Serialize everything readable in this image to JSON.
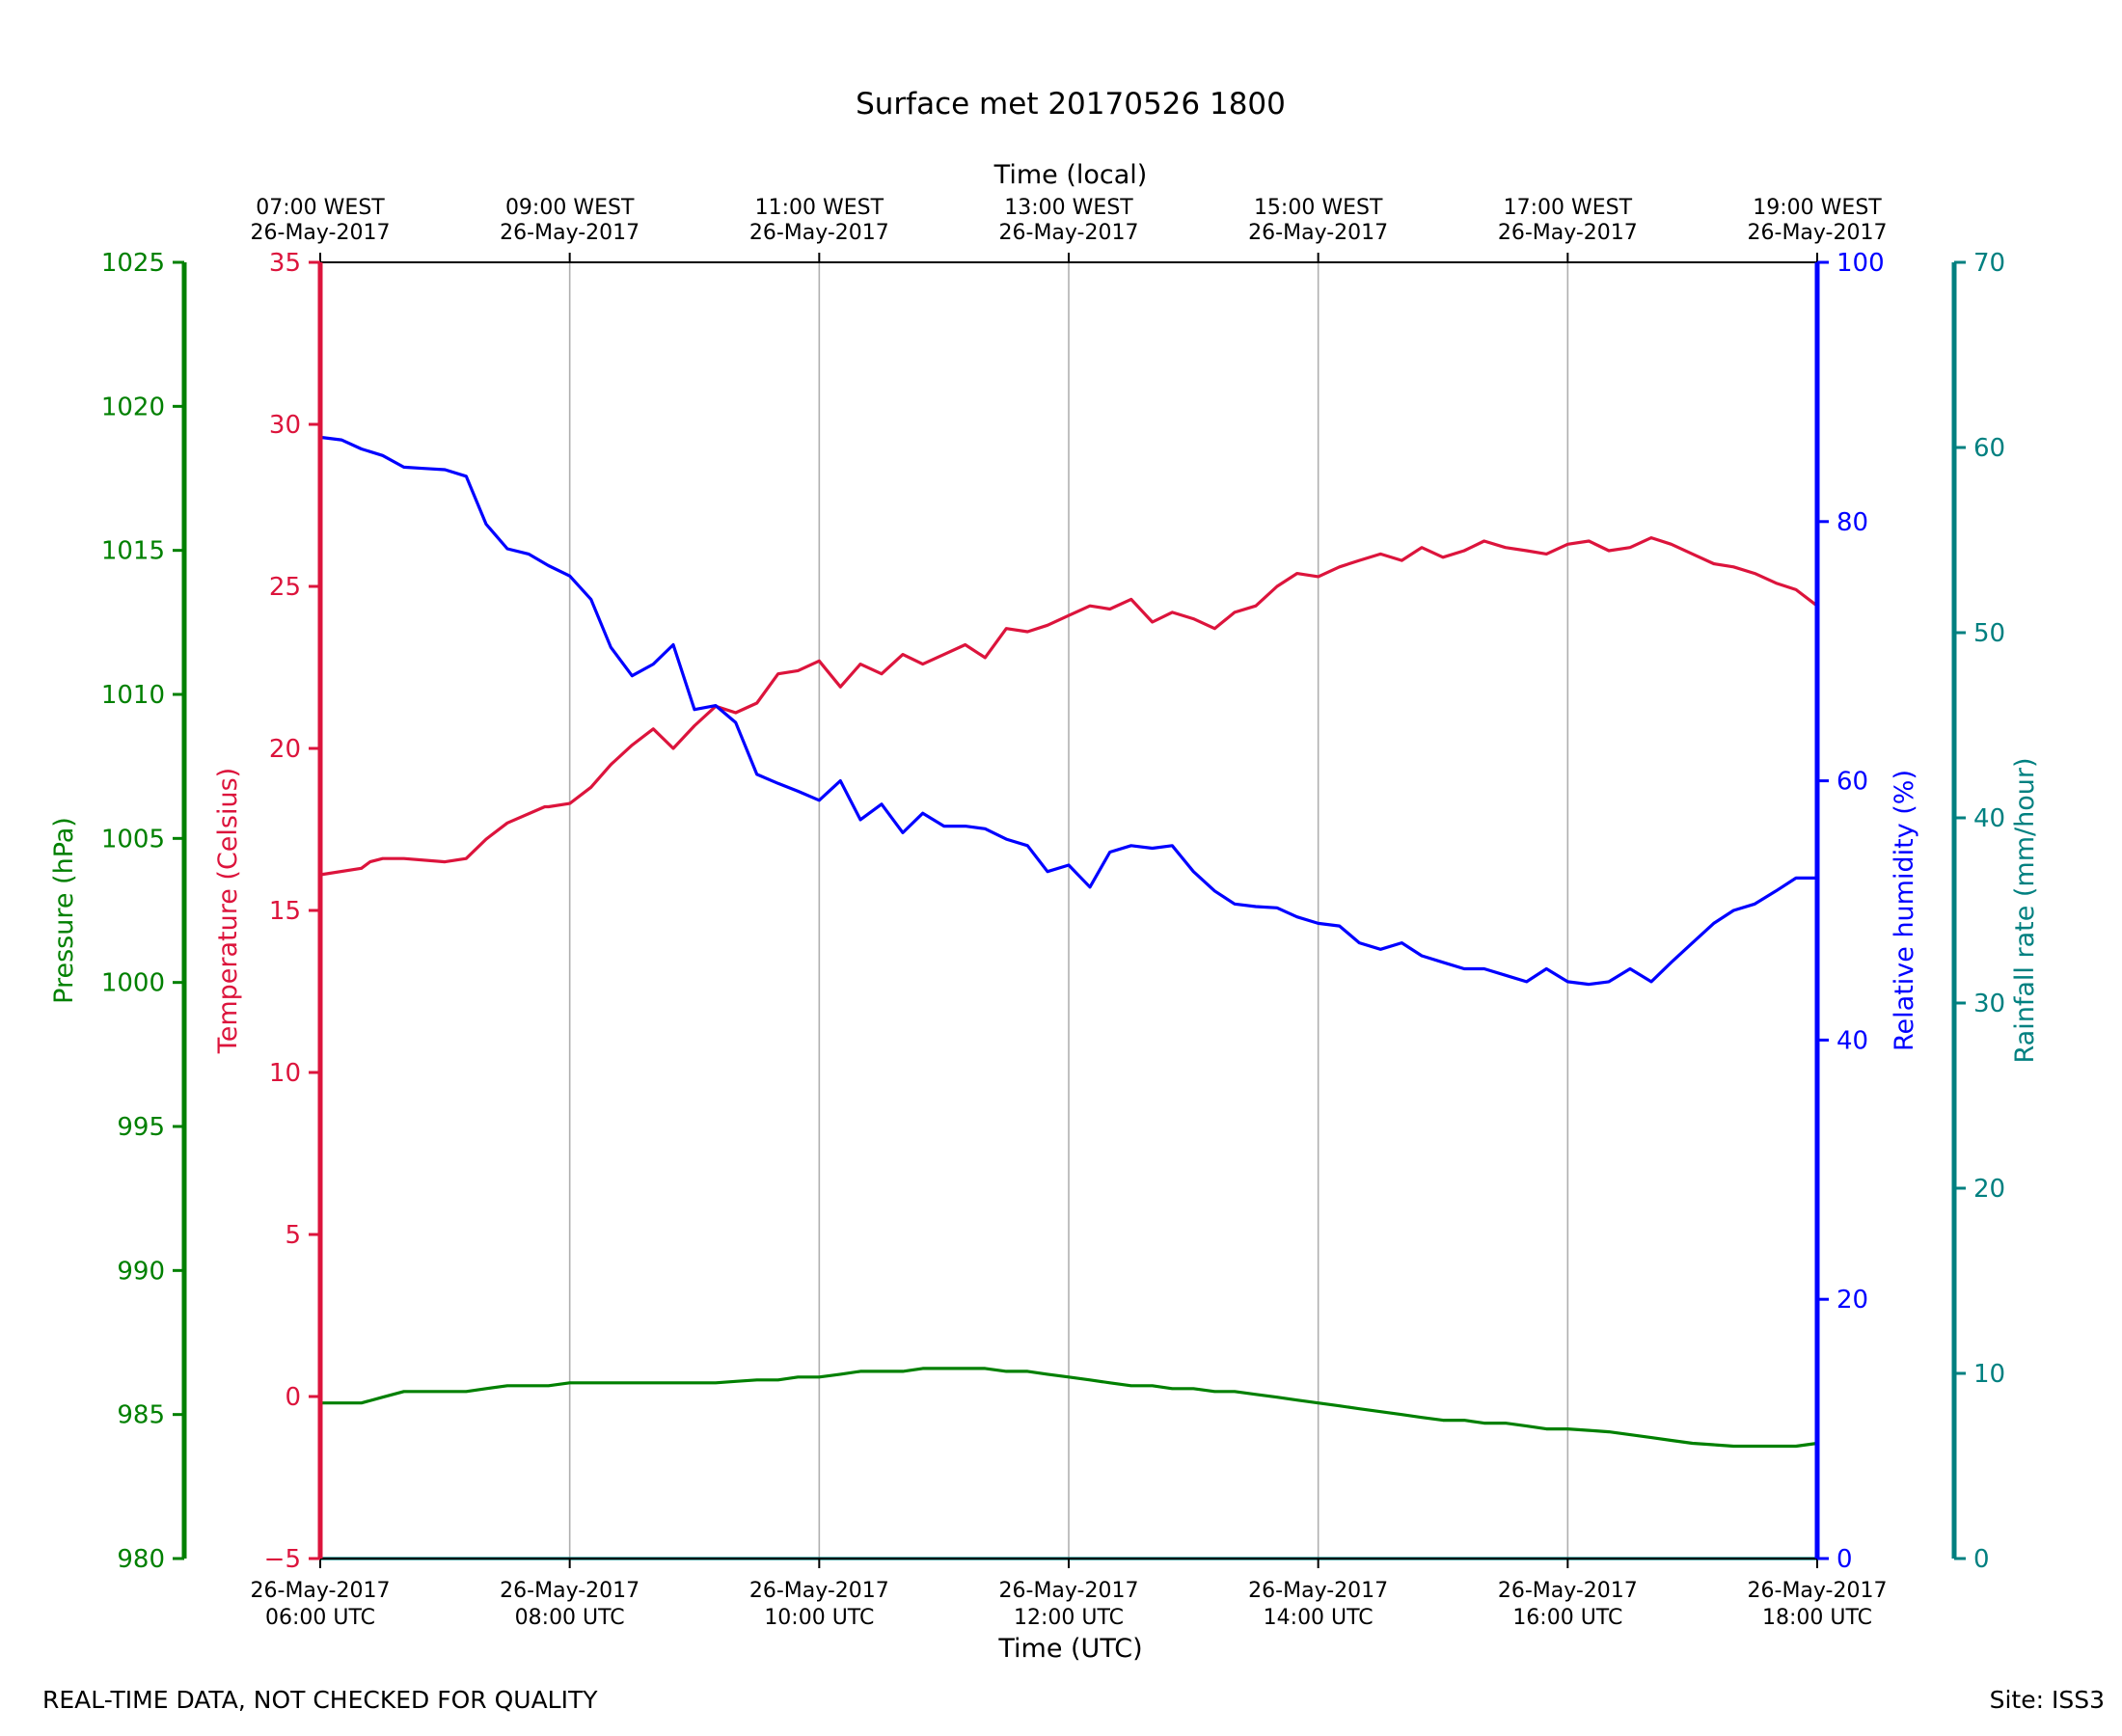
{
  "chart_data": {
    "type": "line",
    "title": "Surface met 20170526 1800",
    "xlabel": "Time (UTC)",
    "top_xlabel": "Time (local)",
    "x_unit": "hours UTC",
    "xlim": [
      6,
      18
    ],
    "x_ticks": [
      {
        "x": 6,
        "utc_line1": "26-May-2017",
        "utc_line2": "06:00 UTC",
        "local_line1": "07:00 WEST",
        "local_line2": "26-May-2017"
      },
      {
        "x": 8,
        "utc_line1": "26-May-2017",
        "utc_line2": "08:00 UTC",
        "local_line1": "09:00 WEST",
        "local_line2": "26-May-2017"
      },
      {
        "x": 10,
        "utc_line1": "26-May-2017",
        "utc_line2": "10:00 UTC",
        "local_line1": "11:00 WEST",
        "local_line2": "26-May-2017"
      },
      {
        "x": 12,
        "utc_line1": "26-May-2017",
        "utc_line2": "12:00 UTC",
        "local_line1": "13:00 WEST",
        "local_line2": "26-May-2017"
      },
      {
        "x": 14,
        "utc_line1": "26-May-2017",
        "utc_line2": "14:00 UTC",
        "local_line1": "15:00 WEST",
        "local_line2": "26-May-2017"
      },
      {
        "x": 16,
        "utc_line1": "26-May-2017",
        "utc_line2": "16:00 UTC",
        "local_line1": "17:00 WEST",
        "local_line2": "26-May-2017"
      },
      {
        "x": 18,
        "utc_line1": "26-May-2017",
        "utc_line2": "18:00 UTC",
        "local_line1": "19:00 WEST",
        "local_line2": "26-May-2017"
      }
    ],
    "grid": "vertical",
    "axes": {
      "pressure": {
        "label": "Pressure (hPa)",
        "color": "#008000",
        "ylim": [
          980,
          1025
        ],
        "ticks": [
          980,
          985,
          990,
          995,
          1000,
          1005,
          1010,
          1015,
          1020,
          1025
        ]
      },
      "temperature": {
        "label": "Temperature (Celsius)",
        "color": "#dc143c",
        "ylim": [
          -5,
          35
        ],
        "ticks": [
          -5,
          0,
          5,
          10,
          15,
          20,
          25,
          30,
          35
        ]
      },
      "humidity": {
        "label": "Relative humidity (%)",
        "color": "#0000ff",
        "ylim": [
          0,
          100
        ],
        "ticks": [
          0,
          20,
          40,
          60,
          80,
          100
        ]
      },
      "rainfall": {
        "label": "Rainfall rate (mm/hour)",
        "color": "#008080",
        "ylim": [
          0,
          70
        ],
        "ticks": [
          0,
          10,
          20,
          30,
          40,
          50,
          60,
          70
        ]
      }
    },
    "series": [
      {
        "name": "Temperature",
        "axis": "temperature",
        "color": "#dc143c",
        "x": [
          6.0,
          6.33,
          6.4,
          6.5,
          6.67,
          7.0,
          7.17,
          7.33,
          7.5,
          7.8,
          7.83,
          8.0,
          8.17,
          8.33,
          8.5,
          8.67,
          8.83,
          9.0,
          9.17,
          9.33,
          9.5,
          9.67,
          9.83,
          10.0,
          10.17,
          10.33,
          10.5,
          10.67,
          10.83,
          11.0,
          11.17,
          11.33,
          11.5,
          11.67,
          11.83,
          12.0,
          12.17,
          12.33,
          12.5,
          12.67,
          12.83,
          13.0,
          13.17,
          13.33,
          13.5,
          13.67,
          13.83,
          14.0,
          14.17,
          14.33,
          14.5,
          14.67,
          14.83,
          15.0,
          15.17,
          15.33,
          15.5,
          15.67,
          15.83,
          16.0,
          16.17,
          16.33,
          16.5,
          16.67,
          16.83,
          17.0,
          17.17,
          17.33,
          17.5,
          17.67,
          17.83,
          18.0
        ],
        "y": [
          16.1,
          16.3,
          16.5,
          16.6,
          16.6,
          16.5,
          16.6,
          17.2,
          17.7,
          18.2,
          18.2,
          18.3,
          18.8,
          19.5,
          20.1,
          20.6,
          20.0,
          20.7,
          21.3,
          21.1,
          21.4,
          22.3,
          22.4,
          22.7,
          21.9,
          22.6,
          22.3,
          22.9,
          22.6,
          22.9,
          23.2,
          22.8,
          23.7,
          23.6,
          23.8,
          24.1,
          24.4,
          24.3,
          24.6,
          23.9,
          24.2,
          24.0,
          23.7,
          24.2,
          24.4,
          25.0,
          25.4,
          25.3,
          25.6,
          25.8,
          26.0,
          25.8,
          26.2,
          25.9,
          26.1,
          26.4,
          26.2,
          26.1,
          26.0,
          26.3,
          26.4,
          26.1,
          26.2,
          26.5,
          26.3,
          26.0,
          25.7,
          25.6,
          25.4,
          25.1,
          24.9,
          24.4
        ]
      },
      {
        "name": "Relative humidity",
        "axis": "humidity",
        "color": "#0000ff",
        "x": [
          6.0,
          6.17,
          6.33,
          6.5,
          6.67,
          6.83,
          7.0,
          7.17,
          7.33,
          7.5,
          7.67,
          7.83,
          8.0,
          8.17,
          8.33,
          8.5,
          8.67,
          8.83,
          9.0,
          9.17,
          9.33,
          9.5,
          9.67,
          9.83,
          10.0,
          10.17,
          10.33,
          10.5,
          10.67,
          10.83,
          11.0,
          11.17,
          11.33,
          11.5,
          11.67,
          11.83,
          12.0,
          12.17,
          12.33,
          12.5,
          12.67,
          12.83,
          13.0,
          13.17,
          13.33,
          13.5,
          13.67,
          13.83,
          14.0,
          14.17,
          14.33,
          14.5,
          14.67,
          14.83,
          15.0,
          15.17,
          15.33,
          15.5,
          15.67,
          15.83,
          16.0,
          16.17,
          16.33,
          16.5,
          16.67,
          16.83,
          17.0,
          17.17,
          17.33,
          17.5,
          17.67,
          17.83,
          18.0
        ],
        "y": [
          86.5,
          86.3,
          85.6,
          85.1,
          84.2,
          84.1,
          84.0,
          83.5,
          79.8,
          77.9,
          77.5,
          76.6,
          75.8,
          74.0,
          70.3,
          68.1,
          69.0,
          70.5,
          65.5,
          65.8,
          64.5,
          60.5,
          59.8,
          59.2,
          58.5,
          60.0,
          57.0,
          58.2,
          56.0,
          57.5,
          56.5,
          56.5,
          56.3,
          55.5,
          55.0,
          53.0,
          53.5,
          51.8,
          54.5,
          55.0,
          54.8,
          55.0,
          53.0,
          51.5,
          50.5,
          50.3,
          50.2,
          49.5,
          49.0,
          48.8,
          47.5,
          47.0,
          47.5,
          46.5,
          46.0,
          45.5,
          45.5,
          45.0,
          44.5,
          45.5,
          44.5,
          44.3,
          44.5,
          45.5,
          44.5,
          46.0,
          47.5,
          49.0,
          50.0,
          50.5,
          51.5,
          52.5,
          52.5
        ]
      },
      {
        "name": "Pressure",
        "axis": "pressure",
        "color": "#008000",
        "x": [
          6.0,
          6.33,
          6.5,
          6.67,
          7.0,
          7.17,
          7.33,
          7.5,
          7.67,
          7.83,
          8.0,
          8.17,
          8.33,
          8.5,
          8.67,
          8.83,
          9.0,
          9.17,
          9.33,
          9.5,
          9.67,
          9.83,
          10.0,
          10.17,
          10.33,
          10.5,
          10.67,
          10.83,
          11.0,
          11.17,
          11.33,
          11.5,
          11.67,
          11.83,
          12.0,
          12.17,
          12.33,
          12.5,
          12.67,
          12.83,
          13.0,
          13.17,
          13.33,
          13.5,
          13.67,
          13.83,
          14.0,
          14.17,
          14.33,
          14.5,
          14.67,
          14.83,
          15.0,
          15.17,
          15.33,
          15.5,
          15.67,
          15.83,
          16.0,
          16.17,
          16.33,
          16.5,
          16.67,
          16.83,
          17.0,
          17.17,
          17.33,
          17.5,
          17.67,
          17.83,
          18.0
        ],
        "y": [
          985.4,
          985.4,
          985.6,
          985.8,
          985.8,
          985.8,
          985.9,
          986.0,
          986.0,
          986.0,
          986.1,
          986.1,
          986.1,
          986.1,
          986.1,
          986.1,
          986.1,
          986.1,
          986.15,
          986.2,
          986.2,
          986.3,
          986.3,
          986.4,
          986.5,
          986.5,
          986.5,
          986.6,
          986.6,
          986.6,
          986.6,
          986.5,
          986.5,
          986.4,
          986.3,
          986.2,
          986.1,
          986.0,
          986.0,
          985.9,
          985.9,
          985.8,
          985.8,
          985.7,
          985.6,
          985.5,
          985.4,
          985.3,
          985.2,
          985.1,
          985.0,
          984.9,
          984.8,
          984.8,
          984.7,
          984.7,
          984.6,
          984.5,
          984.5,
          984.45,
          984.4,
          984.3,
          984.2,
          984.1,
          984.0,
          983.95,
          983.9,
          983.9,
          983.9,
          983.9,
          984.0
        ]
      },
      {
        "name": "Rainfall rate",
        "axis": "rainfall",
        "color": "#008080",
        "x": [
          6.0,
          18.0
        ],
        "y": [
          0.0,
          0.0
        ]
      }
    ]
  },
  "footer": {
    "left": "REAL-TIME DATA, NOT CHECKED FOR QUALITY",
    "right": "Site: ISS3"
  }
}
